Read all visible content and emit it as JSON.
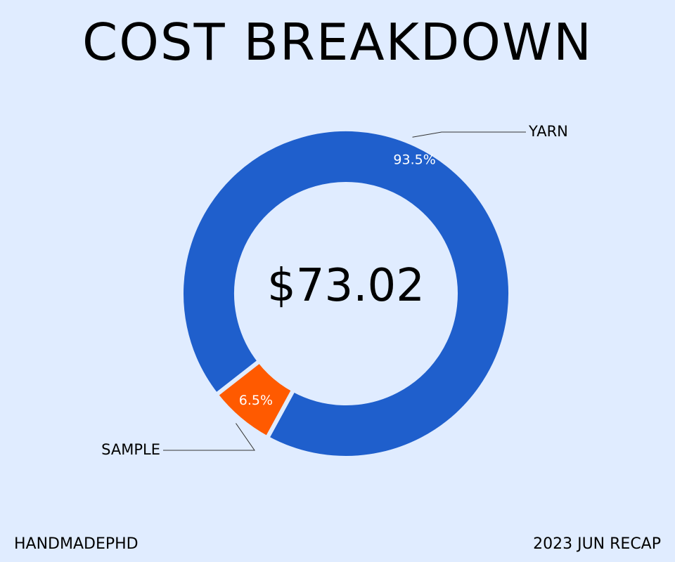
{
  "chart_data": {
    "type": "pie",
    "title": "COST BREAKDOWN",
    "center_label": "$73.02",
    "slices": [
      {
        "label": "YARN",
        "value": 93.5,
        "display": "93.5%",
        "color": "#1f5fcc"
      },
      {
        "label": "SAMPLE",
        "value": 6.5,
        "display": "6.5%",
        "color": "#ff5a00"
      }
    ],
    "style": "donut"
  },
  "footer": {
    "left": "HANDMADEPHD",
    "right": "2023 JUN RECAP"
  },
  "colors": {
    "background": "#e0ecff",
    "slice_separator": "#e0ecff"
  }
}
